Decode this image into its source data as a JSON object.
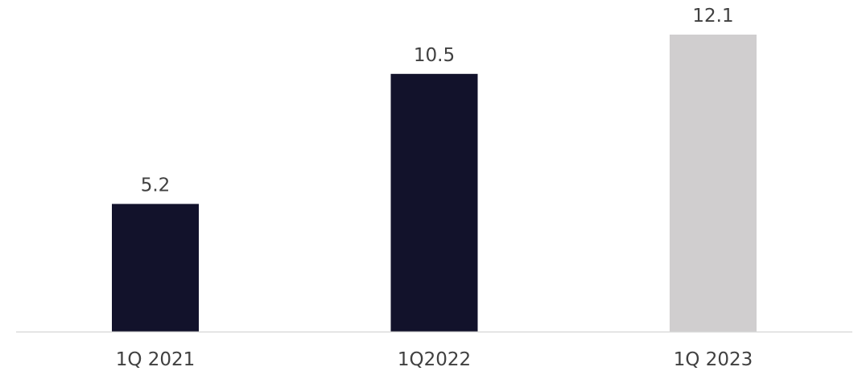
{
  "chart_data": {
    "type": "bar",
    "title": "",
    "xlabel": "",
    "ylabel": "",
    "categories": [
      "1Q 2021",
      "1Q2022",
      "1Q 2023"
    ],
    "values": [
      5.2,
      10.5,
      12.1
    ],
    "value_labels": [
      "5.2",
      "10.5",
      "12.1"
    ],
    "bar_colors": [
      "#12122b",
      "#12122b",
      "#d0cecf"
    ],
    "ylim": [
      0,
      12.1
    ],
    "grid": false,
    "legend": "none",
    "axis_color": "#d9d9d9",
    "label_color": "#404040"
  }
}
